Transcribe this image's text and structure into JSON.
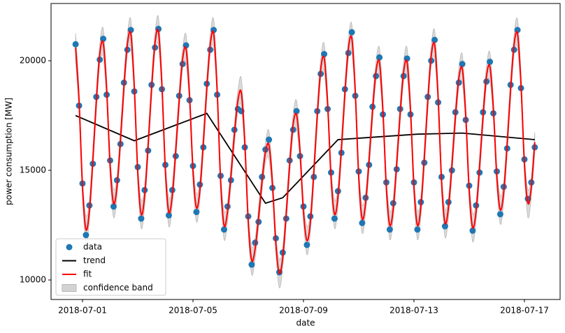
{
  "chart_data": {
    "type": "line",
    "xlabel": "date",
    "ylabel": "power consumption [MW]",
    "xlim": [
      "2018-06-29 20:40",
      "2018-07-18 07:00"
    ],
    "xticks": [
      "2018-07-01",
      "2018-07-05",
      "2018-07-09",
      "2018-07-13",
      "2018-07-17"
    ],
    "ylim": [
      9110,
      22610
    ],
    "yticks": [
      10000,
      15000,
      20000
    ],
    "legend": "lower left",
    "x": [
      "2018-06-30 18:00",
      "2018-06-30 21:00",
      "2018-07-01 00:00",
      "2018-07-01 03:00",
      "2018-07-01 06:00",
      "2018-07-01 09:00",
      "2018-07-01 12:00",
      "2018-07-01 15:00",
      "2018-07-01 18:00",
      "2018-07-01 21:00",
      "2018-07-02 00:00",
      "2018-07-02 03:00",
      "2018-07-02 06:00",
      "2018-07-02 09:00",
      "2018-07-02 12:00",
      "2018-07-02 15:00",
      "2018-07-02 18:00",
      "2018-07-02 21:00",
      "2018-07-03 00:00",
      "2018-07-03 03:00",
      "2018-07-03 06:00",
      "2018-07-03 09:00",
      "2018-07-03 12:00",
      "2018-07-03 15:00",
      "2018-07-03 18:00",
      "2018-07-03 21:00",
      "2018-07-04 00:00",
      "2018-07-04 03:00",
      "2018-07-04 06:00",
      "2018-07-04 09:00",
      "2018-07-04 12:00",
      "2018-07-04 15:00",
      "2018-07-04 18:00",
      "2018-07-04 21:00",
      "2018-07-05 00:00",
      "2018-07-05 03:00",
      "2018-07-05 06:00",
      "2018-07-05 09:00",
      "2018-07-05 12:00",
      "2018-07-05 15:00",
      "2018-07-05 18:00",
      "2018-07-05 21:00",
      "2018-07-06 00:00",
      "2018-07-06 03:00",
      "2018-07-06 06:00",
      "2018-07-06 09:00",
      "2018-07-06 12:00",
      "2018-07-06 15:00",
      "2018-07-06 18:00",
      "2018-07-06 21:00",
      "2018-07-07 00:00",
      "2018-07-07 03:00",
      "2018-07-07 06:00",
      "2018-07-07 09:00",
      "2018-07-07 12:00",
      "2018-07-07 15:00",
      "2018-07-07 18:00",
      "2018-07-07 21:00",
      "2018-07-08 00:00",
      "2018-07-08 03:00",
      "2018-07-08 06:00",
      "2018-07-08 09:00",
      "2018-07-08 12:00",
      "2018-07-08 15:00",
      "2018-07-08 18:00",
      "2018-07-08 21:00",
      "2018-07-09 00:00",
      "2018-07-09 03:00",
      "2018-07-09 06:00",
      "2018-07-09 09:00",
      "2018-07-09 12:00",
      "2018-07-09 15:00",
      "2018-07-09 18:00",
      "2018-07-09 21:00",
      "2018-07-10 00:00",
      "2018-07-10 03:00",
      "2018-07-10 06:00",
      "2018-07-10 09:00",
      "2018-07-10 12:00",
      "2018-07-10 15:00",
      "2018-07-10 18:00",
      "2018-07-10 21:00",
      "2018-07-11 00:00",
      "2018-07-11 03:00",
      "2018-07-11 06:00",
      "2018-07-11 09:00",
      "2018-07-11 12:00",
      "2018-07-11 15:00",
      "2018-07-11 18:00",
      "2018-07-11 21:00",
      "2018-07-12 00:00",
      "2018-07-12 03:00",
      "2018-07-12 06:00",
      "2018-07-12 09:00",
      "2018-07-12 12:00",
      "2018-07-12 15:00",
      "2018-07-12 18:00",
      "2018-07-12 21:00",
      "2018-07-13 00:00",
      "2018-07-13 03:00",
      "2018-07-13 06:00",
      "2018-07-13 09:00",
      "2018-07-13 12:00",
      "2018-07-13 15:00",
      "2018-07-13 18:00",
      "2018-07-13 21:00",
      "2018-07-14 00:00",
      "2018-07-14 03:00",
      "2018-07-14 06:00",
      "2018-07-14 09:00",
      "2018-07-14 12:00",
      "2018-07-14 15:00",
      "2018-07-14 18:00",
      "2018-07-14 21:00",
      "2018-07-15 00:00",
      "2018-07-15 03:00",
      "2018-07-15 06:00",
      "2018-07-15 09:00",
      "2018-07-15 12:00",
      "2018-07-15 15:00",
      "2018-07-15 18:00",
      "2018-07-15 21:00",
      "2018-07-16 00:00",
      "2018-07-16 03:00",
      "2018-07-16 06:00",
      "2018-07-16 09:00",
      "2018-07-16 12:00",
      "2018-07-16 15:00",
      "2018-07-16 18:00",
      "2018-07-16 21:00",
      "2018-07-17 00:00",
      "2018-07-17 03:00",
      "2018-07-17 06:00",
      "2018-07-17 09:00"
    ],
    "series": [
      {
        "name": "data",
        "type": "scatter",
        "color": "#1f77b4",
        "values": [
          20750,
          17950,
          14400,
          12050,
          13400,
          15300,
          18350,
          20050,
          21000,
          18450,
          15450,
          13350,
          14550,
          16200,
          19000,
          20500,
          21400,
          18600,
          15150,
          12800,
          14100,
          15900,
          18900,
          20600,
          21450,
          18700,
          15250,
          12950,
          14100,
          15650,
          18400,
          19850,
          20700,
          18200,
          15200,
          13100,
          14350,
          16050,
          18950,
          20500,
          21400,
          18450,
          14750,
          12300,
          13350,
          14550,
          16850,
          17800,
          17700,
          16050,
          12900,
          10700,
          11700,
          12650,
          14700,
          15950,
          16400,
          14200,
          11900,
          10350,
          11250,
          12800,
          15450,
          16850,
          17700,
          15650,
          13350,
          11600,
          12900,
          14700,
          17700,
          19400,
          20300,
          17800,
          14900,
          12800,
          14050,
          15800,
          18700,
          20350,
          21300,
          18400,
          14950,
          12600,
          13750,
          15250,
          17900,
          19300,
          20150,
          17550,
          14450,
          12300,
          13500,
          15050,
          17800,
          19300,
          20100,
          17550,
          14450,
          12300,
          13550,
          15350,
          18350,
          20000,
          20950,
          18100,
          14700,
          12450,
          13550,
          15000,
          17650,
          19000,
          19850,
          17300,
          14300,
          12250,
          13400,
          14900,
          17650,
          19050,
          19950,
          17600,
          14950,
          13000,
          14250,
          16000,
          18900,
          20500,
          21400,
          18750,
          15500,
          13700,
          14450,
          16050
        ]
      },
      {
        "name": "trend",
        "type": "line",
        "color": "#000000",
        "x": [
          "2018-06-30 18:00",
          "2018-07-02 21:00",
          "2018-07-05 12:00",
          "2018-07-07 15:00",
          "2018-07-08 06:00",
          "2018-07-10 06:00",
          "2018-07-13 03:00",
          "2018-07-14 18:00",
          "2018-07-17 09:00"
        ],
        "values": [
          17500,
          16350,
          17600,
          13500,
          13750,
          16400,
          16650,
          16700,
          16400
        ]
      },
      {
        "name": "fit",
        "type": "line",
        "color": "#ff0000",
        "values": [
          20600,
          18180,
          14230,
          12300,
          13160,
          15480,
          18150,
          20300,
          20810,
          18680,
          15200,
          13500,
          14280,
          16390,
          18800,
          20750,
          21220,
          18810,
          14910,
          13000,
          13840,
          16110,
          18710,
          20810,
          21320,
          18910,
          15010,
          13100,
          13850,
          15880,
          18200,
          20080,
          20530,
          18410,
          14980,
          13300,
          14100,
          16260,
          18740,
          20740,
          21220,
          18660,
          14520,
          12500,
          13110,
          14760,
          16650,
          18170,
          18540,
          16290,
          12670,
          10900,
          11430,
          12860,
          14500,
          15830,
          16150,
          14430,
          11660,
          10300,
          11030,
          13000,
          15260,
          17090,
          17530,
          15860,
          13130,
          11800,
          12640,
          14910,
          17510,
          19610,
          20120,
          18040,
          14660,
          13000,
          13810,
          16000,
          18510,
          20530,
          21020,
          18610,
          14710,
          12800,
          13520,
          15460,
          17700,
          19500,
          19930,
          17750,
          14230,
          12500,
          13250,
          15280,
          17600,
          19480,
          19930,
          17750,
          14230,
          12500,
          13330,
          15570,
          18140,
          20220,
          20720,
          18340,
          14490,
          12600,
          13310,
          15230,
          17430,
          19200,
          19630,
          17510,
          14080,
          12400,
          13140,
          15140,
          17430,
          19280,
          19730,
          17820,
          14720,
          13200,
          14010,
          16200,
          18710,
          20730,
          21220,
          18960,
          15290,
          13500,
          14250,
          16280
        ]
      },
      {
        "name": "confidence band",
        "type": "band",
        "color": "#d3d3d3",
        "lower": [
          19950,
          17730,
          13780,
          11650,
          12710,
          15030,
          17700,
          19850,
          20160,
          18230,
          14750,
          12850,
          13830,
          15940,
          18350,
          20300,
          20570,
          18360,
          14460,
          12350,
          13390,
          15660,
          18260,
          20360,
          20670,
          18460,
          14560,
          12450,
          13400,
          15430,
          17750,
          19630,
          19880,
          17960,
          14530,
          12650,
          13650,
          15810,
          18290,
          20290,
          20570,
          18210,
          14070,
          11850,
          12660,
          14310,
          16200,
          17720,
          17890,
          15840,
          12220,
          10250,
          10980,
          12410,
          14050,
          15380,
          15500,
          13980,
          11210,
          9650,
          10580,
          12550,
          14810,
          16640,
          16880,
          15410,
          12680,
          11150,
          12190,
          14460,
          17060,
          19160,
          19470,
          17590,
          14210,
          12350,
          13360,
          15550,
          18060,
          20080,
          20370,
          18160,
          14260,
          12150,
          13070,
          15010,
          17250,
          19050,
          19280,
          17300,
          13780,
          11850,
          12800,
          14830,
          17150,
          19030,
          19280,
          17300,
          13780,
          11850,
          12880,
          15120,
          17690,
          19770,
          20070,
          17890,
          14040,
          11950,
          12860,
          14780,
          16980,
          18750,
          18980,
          17060,
          13630,
          11750,
          12690,
          14690,
          16980,
          18830,
          19080,
          17370,
          14270,
          12550,
          13560,
          15750,
          18260,
          20280,
          20570,
          18510,
          14840,
          12850,
          13800,
          15830
        ],
        "upper": [
          21250,
          18630,
          14680,
          12950,
          13610,
          15930,
          18600,
          20750,
          21460,
          19130,
          15650,
          14150,
          14730,
          16840,
          19250,
          21200,
          21870,
          19260,
          15360,
          13650,
          14290,
          16560,
          19160,
          21260,
          21970,
          19360,
          15460,
          13750,
          14300,
          16330,
          18650,
          20530,
          21180,
          18860,
          15430,
          13950,
          14550,
          16710,
          19190,
          21190,
          21870,
          19110,
          14970,
          13150,
          13560,
          15210,
          17100,
          18620,
          19190,
          16740,
          13120,
          11550,
          11880,
          13310,
          14950,
          16280,
          16800,
          14880,
          12110,
          10950,
          11480,
          13450,
          15710,
          17540,
          18180,
          16310,
          13580,
          12450,
          13090,
          15360,
          17960,
          20060,
          20770,
          18490,
          15110,
          13650,
          14260,
          16450,
          18960,
          20980,
          21670,
          19060,
          15160,
          13450,
          13970,
          15910,
          18150,
          19950,
          20580,
          18200,
          14680,
          13150,
          13700,
          15730,
          18050,
          19930,
          20580,
          18200,
          14680,
          13150,
          13780,
          16020,
          18590,
          20670,
          21370,
          18790,
          14940,
          13250,
          13760,
          15680,
          17880,
          19650,
          20280,
          17960,
          14530,
          13050,
          13590,
          15590,
          17880,
          19730,
          20380,
          18270,
          15170,
          13850,
          14460,
          16650,
          19160,
          21180,
          21870,
          19410,
          15740,
          14150,
          14700,
          16730
        ]
      }
    ]
  }
}
